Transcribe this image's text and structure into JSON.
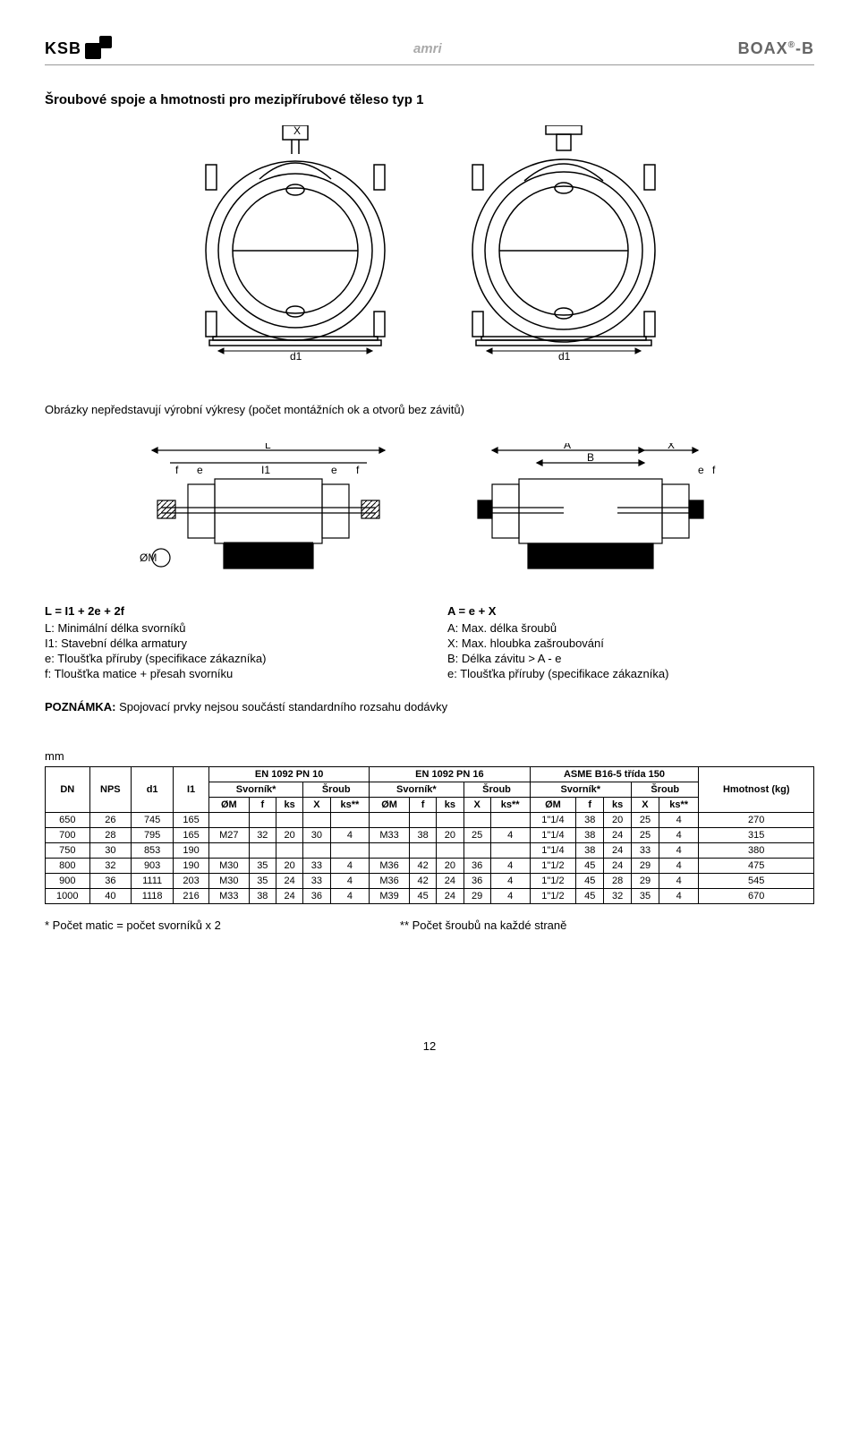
{
  "header": {
    "logo_text": "KSB",
    "center_brand": "amri",
    "right_brand": "BOAX®-B"
  },
  "title": "Šroubové spoje a hmotnosti pro mezipřírubové těleso typ 1",
  "caption": "Obrázky nepředstavují výrobní výkresy (počet montážních ok a otvorů bez závitů)",
  "front_view_labels": {
    "top": "X",
    "dim": "d1"
  },
  "section_left_labels": {
    "L": "L",
    "f": "f",
    "e": "e",
    "I1": "I1",
    "OM": "ØM"
  },
  "section_right_labels": {
    "A": "A",
    "X": "X",
    "B": "B",
    "e": "e",
    "f": "f"
  },
  "definitions": {
    "left": {
      "head": "L = I1 + 2e + 2f",
      "lines": [
        "L: Minimální délka svorníků",
        "I1: Stavební délka armatury",
        "e: Tloušťka příruby (specifikace zákazníka)",
        "f: Tloušťka matice + přesah svorníku"
      ]
    },
    "right": {
      "head": "A = e + X",
      "lines": [
        "A: Max. délka šroubů",
        "X: Max. hloubka zašroubování",
        "B: Délka závitu > A - e",
        "e: Tloušťka příruby (specifikace zákazníka)"
      ]
    }
  },
  "note_label": "POZNÁMKA:",
  "note_text": "Spojovací prvky nejsou součástí standardního rozsahu dodávky",
  "unit": "mm",
  "table": {
    "groups": [
      "EN 1092 PN 10",
      "EN 1092 PN 16",
      "ASME B16-5 třída 150"
    ],
    "head_cols": [
      "DN",
      "NPS",
      "d1",
      "I1"
    ],
    "sub_svornik": "Svorník*",
    "sub_sroub": "Šroub",
    "subheads": [
      "ØM",
      "f",
      "ks",
      "X",
      "ks**"
    ],
    "weight_label": "Hmotnost (kg)",
    "rows": [
      [
        "650",
        "26",
        "745",
        "165",
        "",
        "",
        "",
        "",
        "",
        "",
        "",
        "",
        "",
        "",
        "1\"1/4",
        "38",
        "20",
        "25",
        "4",
        "270"
      ],
      [
        "700",
        "28",
        "795",
        "165",
        "M27",
        "32",
        "20",
        "30",
        "4",
        "M33",
        "38",
        "20",
        "25",
        "4",
        "1\"1/4",
        "38",
        "24",
        "25",
        "4",
        "315"
      ],
      [
        "750",
        "30",
        "853",
        "190",
        "",
        "",
        "",
        "",
        "",
        "",
        "",
        "",
        "",
        "",
        "1\"1/4",
        "38",
        "24",
        "33",
        "4",
        "380"
      ],
      [
        "800",
        "32",
        "903",
        "190",
        "M30",
        "35",
        "20",
        "33",
        "4",
        "M36",
        "42",
        "20",
        "36",
        "4",
        "1\"1/2",
        "45",
        "24",
        "29",
        "4",
        "475"
      ],
      [
        "900",
        "36",
        "1111",
        "203",
        "M30",
        "35",
        "24",
        "33",
        "4",
        "M36",
        "42",
        "24",
        "36",
        "4",
        "1\"1/2",
        "45",
        "28",
        "29",
        "4",
        "545"
      ],
      [
        "1000",
        "40",
        "1118",
        "216",
        "M33",
        "38",
        "24",
        "36",
        "4",
        "M39",
        "45",
        "24",
        "29",
        "4",
        "1\"1/2",
        "45",
        "32",
        "35",
        "4",
        "670"
      ]
    ]
  },
  "footnote_left": "* Počet matic = počet svorníků x 2",
  "footnote_right": "** Počet šroubů na každé straně",
  "page_number": "12"
}
